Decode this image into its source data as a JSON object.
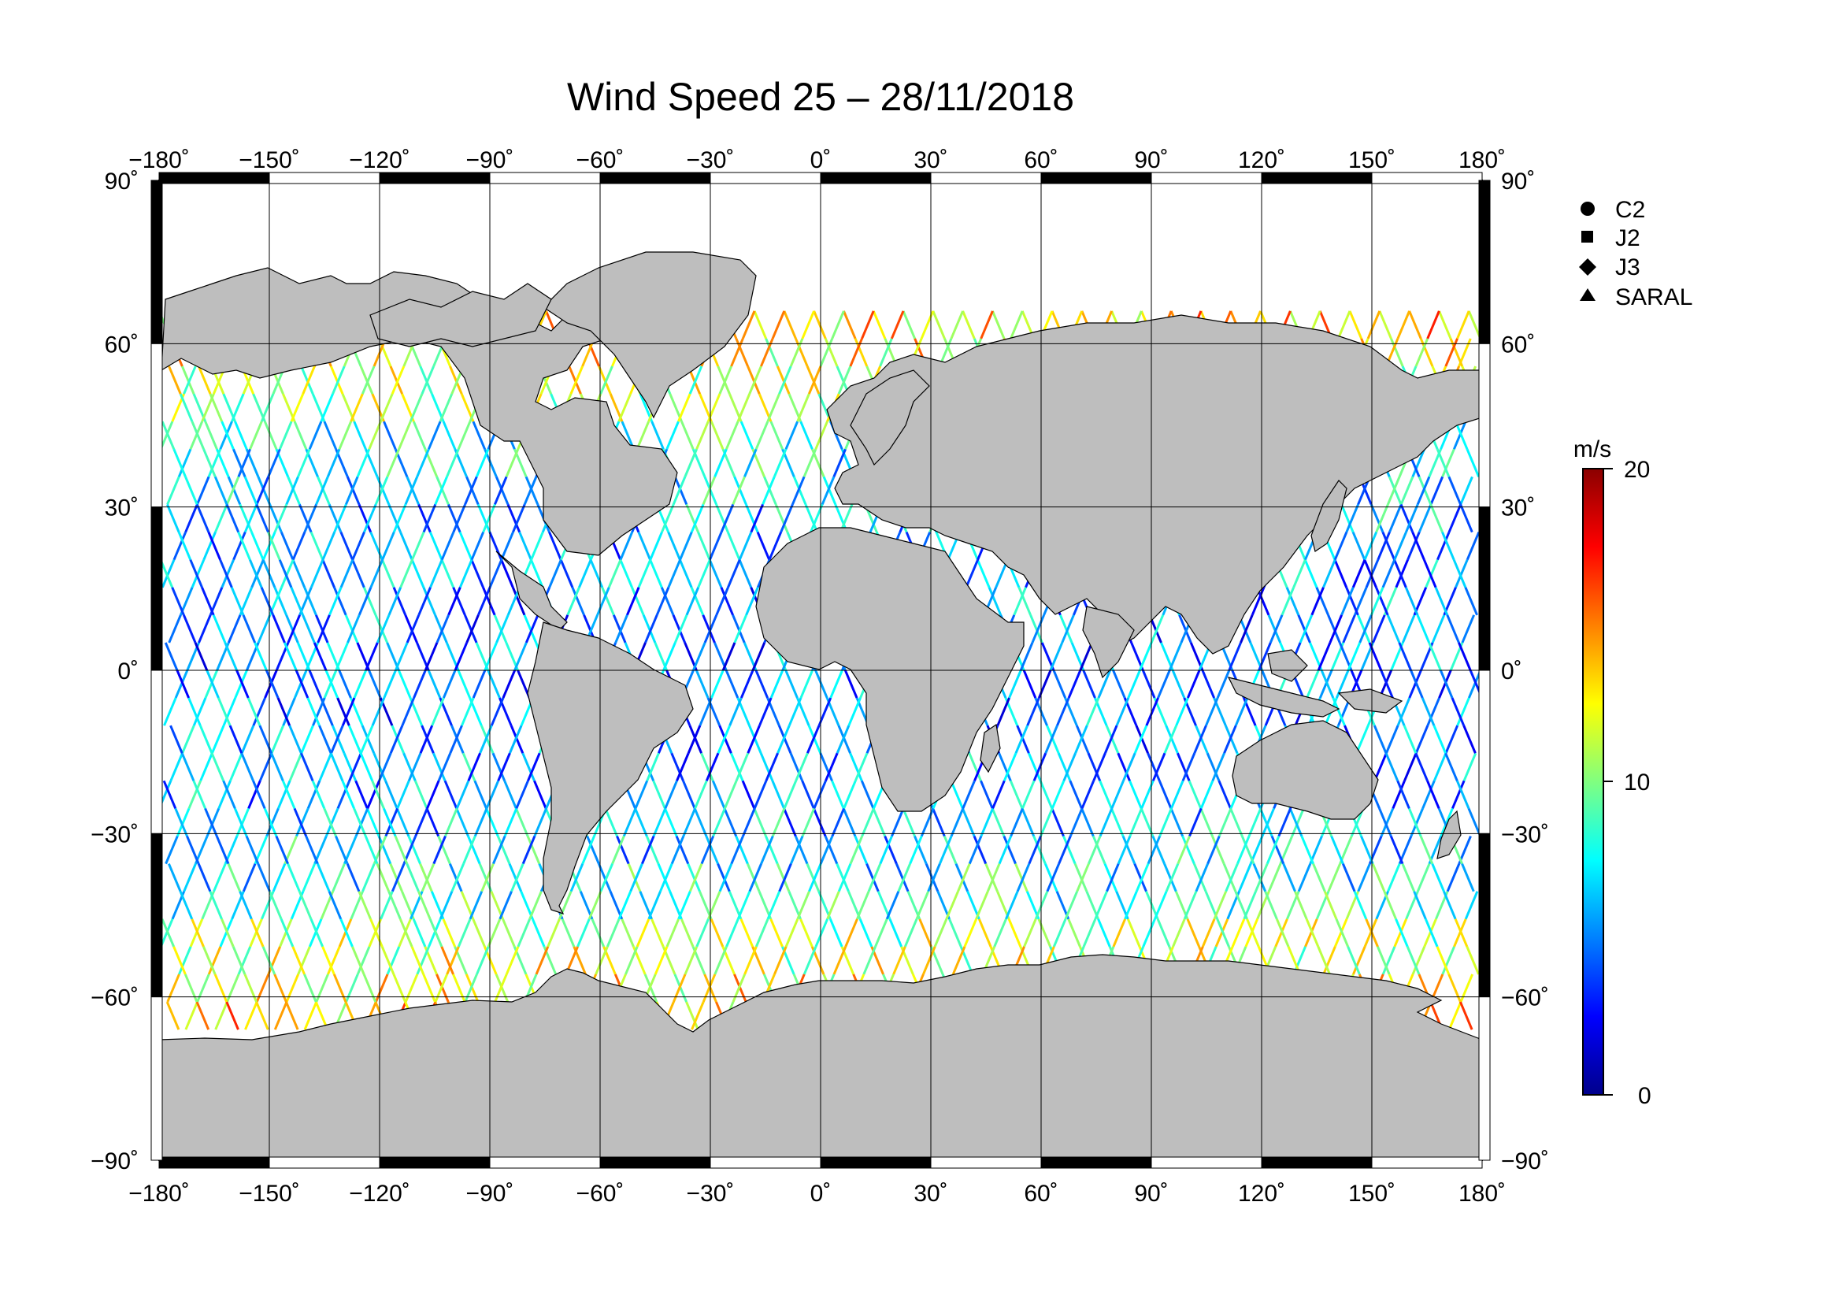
{
  "title": "Wind Speed 25 – 28/11/2018",
  "map": {
    "projection": "equirectangular",
    "lon_range": [
      -180,
      180
    ],
    "lat_range": [
      -90,
      90
    ],
    "lon_ticks": [
      "−180˚",
      "−150˚",
      "−120˚",
      "−90˚",
      "−60˚",
      "−30˚",
      "0˚",
      "30˚",
      "60˚",
      "90˚",
      "120˚",
      "150˚",
      "180˚"
    ],
    "lat_ticks": [
      "90˚",
      "60˚",
      "30˚",
      "0˚",
      "−30˚",
      "−60˚",
      "−90˚"
    ],
    "lat_tick_values": [
      90,
      60,
      30,
      0,
      -30,
      -60,
      -90
    ],
    "grid": true,
    "land_color": "#bebebe",
    "ocean_color": "#ffffff"
  },
  "legend": {
    "placement": "top-right",
    "items": [
      {
        "label": "C2",
        "marker": "circle"
      },
      {
        "label": "J2",
        "marker": "square"
      },
      {
        "label": "J3",
        "marker": "diamond"
      },
      {
        "label": "SARAL",
        "marker": "triangle"
      }
    ]
  },
  "colorbar": {
    "unit": "m/s",
    "min": 0,
    "max": 20,
    "tick_labels": [
      "20",
      "10",
      "0"
    ],
    "colormap": [
      "#00008b",
      "#0000ff",
      "#0080ff",
      "#00ffff",
      "#80ff80",
      "#ffff00",
      "#ff8000",
      "#ff0000",
      "#8b0000"
    ]
  },
  "chart_data": {
    "type": "scatter",
    "title": "Wind Speed 25 – 28/11/2018",
    "variable": "Wind Speed",
    "unit": "m/s",
    "value_range": [
      0,
      20
    ],
    "series": [
      {
        "name": "C2"
      },
      {
        "name": "J2"
      },
      {
        "name": "J3"
      },
      {
        "name": "SARAL"
      }
    ]
  }
}
